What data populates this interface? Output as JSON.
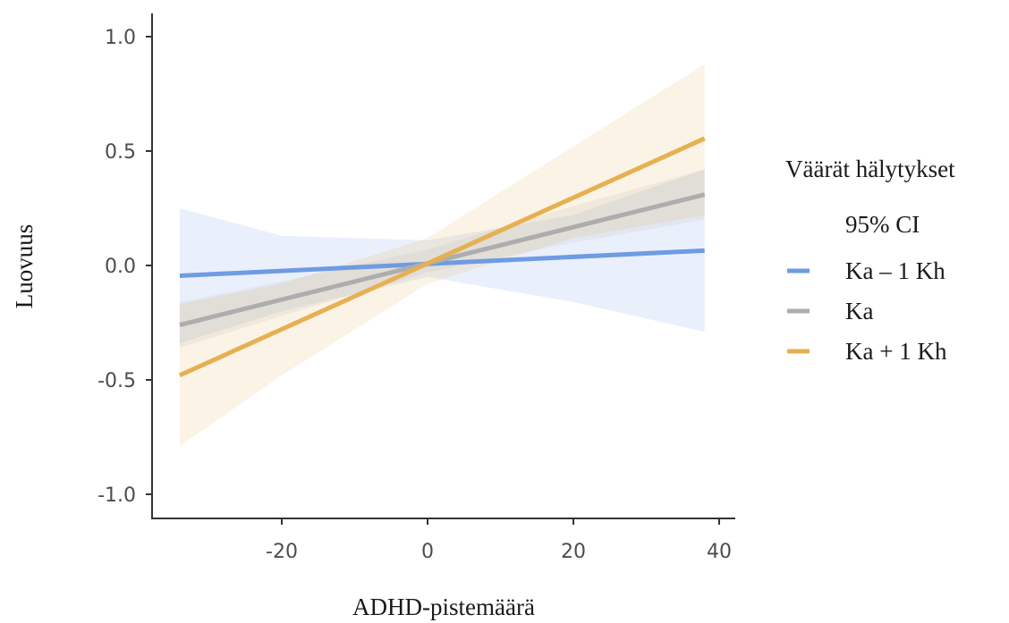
{
  "chart_data": {
    "type": "line",
    "xlabel": "ADHD-pistemäärä",
    "ylabel": "Luovuus",
    "xlim": [
      -37,
      42
    ],
    "ylim": [
      -1.1,
      1.05
    ],
    "x_ticks": [
      -20,
      0,
      20,
      40
    ],
    "x_tick_labels": [
      "-20",
      "0",
      "20",
      "40"
    ],
    "y_ticks": [
      -1.0,
      -0.5,
      0.0,
      0.5,
      1.0
    ],
    "y_tick_labels": [
      "-1.0",
      "-0.5",
      "0.0",
      "0.5",
      "1.0"
    ],
    "grid": false,
    "legend": {
      "position": "right",
      "title": "Väärät hälytykset",
      "subtitle": "95% CI"
    },
    "series": [
      {
        "name": "Ka – 1 Kh",
        "color": "#6f9be3",
        "x": [
          -34,
          38
        ],
        "y": [
          -0.045,
          0.065
        ],
        "ci_x": [
          -34,
          -20,
          0,
          20,
          38
        ],
        "ci_lower": [
          -0.34,
          -0.2,
          -0.05,
          -0.16,
          -0.29
        ],
        "ci_upper": [
          0.25,
          0.13,
          0.11,
          0.22,
          0.42
        ]
      },
      {
        "name": "Ka",
        "color": "#adadad",
        "x": [
          -34,
          38
        ],
        "y": [
          -0.26,
          0.31
        ],
        "ci_x": [
          -34,
          -20,
          0,
          20,
          38
        ],
        "ci_lower": [
          -0.36,
          -0.22,
          -0.03,
          0.1,
          0.2
        ],
        "ci_upper": [
          -0.16,
          -0.07,
          0.07,
          0.26,
          0.42
        ]
      },
      {
        "name": "Ka + 1 Kh",
        "color": "#e6b052",
        "x": [
          -34,
          38
        ],
        "y": [
          -0.48,
          0.555
        ],
        "ci_x": [
          -34,
          -20,
          0,
          20,
          38
        ],
        "ci_lower": [
          -0.79,
          -0.48,
          -0.08,
          0.12,
          0.22
        ],
        "ci_upper": [
          -0.17,
          -0.08,
          0.12,
          0.52,
          0.88
        ]
      }
    ]
  }
}
